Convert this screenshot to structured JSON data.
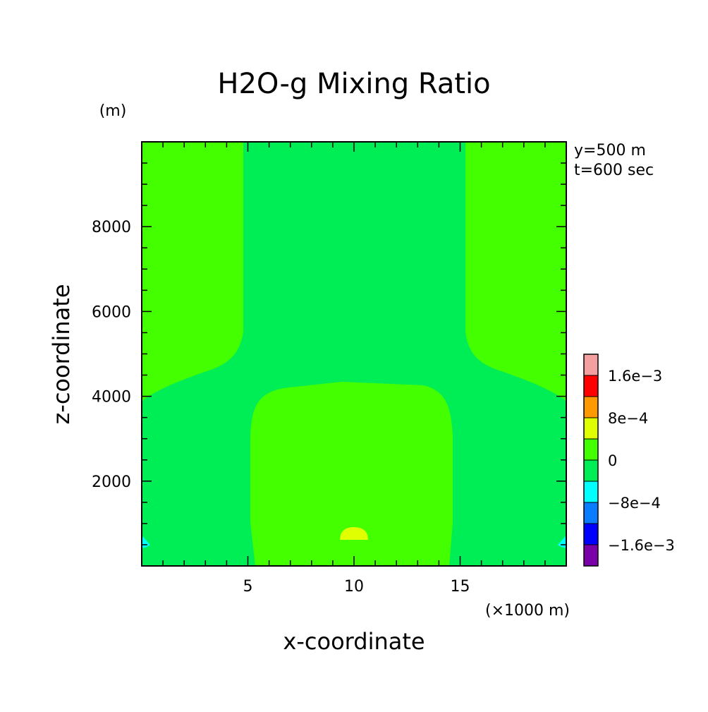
{
  "chart_data": {
    "type": "contour",
    "title": "H2O-g Mixing Ratio",
    "xlabel": "x-coordinate",
    "ylabel": "z-coordinate",
    "x_unit": "(×1000 m)",
    "y_unit": "(m)",
    "xlim": [
      0,
      20
    ],
    "ylim": [
      0,
      10000
    ],
    "x_ticks": [
      5,
      10,
      15
    ],
    "y_ticks": [
      2000,
      4000,
      6000,
      8000
    ],
    "annotations": [
      "y=500 m",
      "t=600 sec"
    ],
    "colorbar": {
      "levels": [
        {
          "range": [
            -0.002,
            -0.0016
          ],
          "color": "#7a00a8"
        },
        {
          "range": [
            -0.0016,
            -0.0012
          ],
          "color": "#0000ff"
        },
        {
          "range": [
            -0.0012,
            -0.0008
          ],
          "color": "#0a7cff"
        },
        {
          "range": [
            -0.0008,
            -0.0004
          ],
          "color": "#00ffff"
        },
        {
          "range": [
            -0.0004,
            0
          ],
          "color": "#00ee55"
        },
        {
          "range": [
            0,
            0.0004
          ],
          "color": "#44ff00"
        },
        {
          "range": [
            0.0004,
            0.0008
          ],
          "color": "#e0ff00"
        },
        {
          "range": [
            0.0008,
            0.0012
          ],
          "color": "#ff9900"
        },
        {
          "range": [
            0.0012,
            0.0016
          ],
          "color": "#ff0000"
        },
        {
          "range": [
            0.0016,
            0.002
          ],
          "color": "#f4a0a0"
        }
      ],
      "labels": [
        {
          "value": -0.0016,
          "text": "−1.6e−3"
        },
        {
          "value": -0.0008,
          "text": "−8e−4"
        },
        {
          "value": 0,
          "text": "0"
        },
        {
          "value": 0.0008,
          "text": "8e−4"
        },
        {
          "value": 0.0016,
          "text": "1.6e−3"
        }
      ]
    },
    "regions": [
      {
        "name": "background",
        "level": "-4e-4..0",
        "color": "#00ee55"
      },
      {
        "name": "upper-left-positive",
        "level": "0..4e-4",
        "color": "#44ff00"
      },
      {
        "name": "upper-right-positive",
        "level": "0..4e-4",
        "color": "#44ff00"
      },
      {
        "name": "lower-center-positive",
        "level": "0..4e-4",
        "color": "#44ff00"
      },
      {
        "name": "center-max-blob",
        "level": "4e-4..8e-4",
        "color": "#e0ff00",
        "x": 10,
        "z": 750
      },
      {
        "name": "left-edge-min",
        "level": "-8e-4..-4e-4",
        "color": "#00ffff",
        "x": 0,
        "z": 600
      },
      {
        "name": "right-edge-min",
        "level": "-8e-4..-4e-4",
        "color": "#00ffff",
        "x": 20,
        "z": 600
      }
    ]
  }
}
